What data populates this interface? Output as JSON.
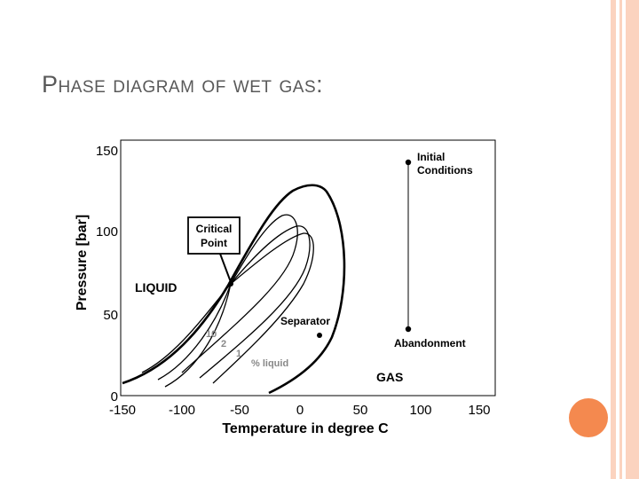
{
  "slide": {
    "title": "Phase diagram of wet gas:",
    "accent_color": "#f4894f",
    "stripe_color": "#fbd3bf"
  },
  "diagram": {
    "x_axis": {
      "label": "Temperature in degree C",
      "ticks": [
        "-150",
        "-100",
        "-50",
        "0",
        "50",
        "100",
        "150"
      ]
    },
    "y_axis": {
      "label": "Pressure [bar]",
      "ticks": [
        "0",
        "50",
        "100",
        "150"
      ]
    },
    "labels": {
      "liquid": "LIQUID",
      "gas": "GAS",
      "critical_point_line1": "Critical",
      "critical_point_line2": "Point",
      "separator": "Separator",
      "initial_line1": "Initial",
      "initial_line2": "Conditions",
      "abandonment": "Abandonment",
      "quality_10": "10",
      "quality_2": "2",
      "quality_1": "1",
      "percent_liquid": "% liquid"
    }
  }
}
